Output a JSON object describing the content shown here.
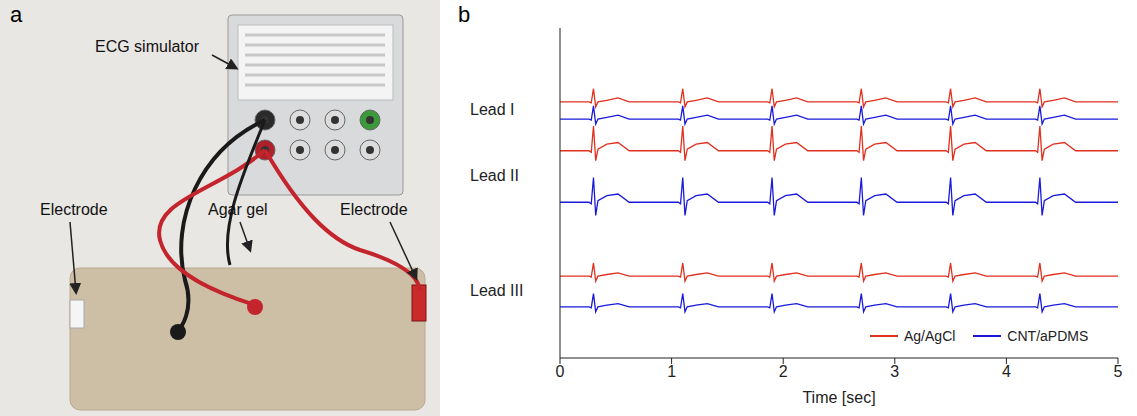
{
  "panel_a": {
    "letter": "a",
    "labels": {
      "simulator": "ECG simulator",
      "gel": "Agar gel",
      "electrode_left": "Electrode",
      "electrode_right": "Electrode"
    }
  },
  "panel_b": {
    "letter": "b"
  },
  "chart_data": {
    "type": "line",
    "xlabel": "Time [sec]",
    "xlim": [
      0,
      5
    ],
    "xticks": [
      0,
      1,
      2,
      3,
      4,
      5
    ],
    "ylim": [
      0,
      10
    ],
    "tick_labels": "x",
    "legend": "lower right",
    "x": [
      0,
      0.26,
      0.28,
      0.3,
      0.32,
      0.34,
      0.42,
      0.52,
      0.62,
      1.06,
      1.08,
      1.1,
      1.12,
      1.14,
      1.22,
      1.32,
      1.42,
      1.86,
      1.88,
      1.9,
      1.92,
      1.94,
      2.02,
      2.12,
      2.22,
      2.66,
      2.68,
      2.7,
      2.72,
      2.74,
      2.82,
      2.92,
      3.02,
      3.46,
      3.48,
      3.5,
      3.52,
      3.54,
      3.62,
      3.72,
      3.82,
      4.26,
      4.28,
      4.3,
      4.32,
      4.34,
      4.42,
      4.52,
      4.62,
      5
    ],
    "series": [
      {
        "name": "Ag/AgCl",
        "lead": "Lead I",
        "color": "#e0301e",
        "values": [
          7.76,
          7.76,
          7.73,
          8.16,
          7.61,
          7.76,
          7.81,
          7.88,
          7.76,
          7.76,
          7.73,
          8.16,
          7.61,
          7.76,
          7.81,
          7.88,
          7.76,
          7.76,
          7.73,
          8.16,
          7.61,
          7.76,
          7.81,
          7.88,
          7.76,
          7.76,
          7.73,
          8.16,
          7.61,
          7.76,
          7.81,
          7.88,
          7.76,
          7.76,
          7.73,
          8.16,
          7.61,
          7.76,
          7.81,
          7.88,
          7.76,
          7.76,
          7.73,
          8.16,
          7.61,
          7.76,
          7.81,
          7.88,
          7.76,
          7.76
        ]
      },
      {
        "name": "CNT/aPDMS",
        "lead": "Lead I",
        "color": "#1a1adb",
        "values": [
          7.24,
          7.24,
          7.21,
          7.64,
          7.09,
          7.24,
          7.29,
          7.36,
          7.24,
          7.24,
          7.21,
          7.64,
          7.09,
          7.24,
          7.29,
          7.36,
          7.24,
          7.24,
          7.21,
          7.64,
          7.09,
          7.24,
          7.29,
          7.36,
          7.24,
          7.24,
          7.21,
          7.64,
          7.09,
          7.24,
          7.29,
          7.36,
          7.24,
          7.24,
          7.21,
          7.64,
          7.09,
          7.24,
          7.29,
          7.36,
          7.24,
          7.24,
          7.21,
          7.64,
          7.09,
          7.24,
          7.29,
          7.36,
          7.24,
          7.24
        ]
      },
      {
        "name": "Ag/AgCl",
        "lead": "Lead II",
        "color": "#e0301e",
        "values": [
          6.28,
          6.28,
          6.23,
          7.03,
          5.98,
          6.33,
          6.48,
          6.53,
          6.28,
          6.28,
          6.23,
          7.03,
          5.98,
          6.33,
          6.48,
          6.53,
          6.28,
          6.28,
          6.23,
          7.03,
          5.98,
          6.33,
          6.48,
          6.53,
          6.28,
          6.28,
          6.23,
          7.03,
          5.98,
          6.33,
          6.48,
          6.53,
          6.28,
          6.28,
          6.23,
          7.03,
          5.98,
          6.33,
          6.48,
          6.53,
          6.28,
          6.28,
          6.23,
          7.03,
          5.98,
          6.33,
          6.48,
          6.53,
          6.28,
          6.28
        ]
      },
      {
        "name": "CNT/aPDMS",
        "lead": "Lead II",
        "color": "#1a1adb",
        "values": [
          4.72,
          4.72,
          4.67,
          5.47,
          4.32,
          4.77,
          4.92,
          4.97,
          4.72,
          4.72,
          4.67,
          5.47,
          4.32,
          4.77,
          4.92,
          4.97,
          4.72,
          4.72,
          4.67,
          5.47,
          4.32,
          4.77,
          4.92,
          4.97,
          4.72,
          4.72,
          4.67,
          5.47,
          4.32,
          4.77,
          4.92,
          4.97,
          4.72,
          4.72,
          4.67,
          5.47,
          4.32,
          4.77,
          4.92,
          4.97,
          4.72,
          4.72,
          4.67,
          5.47,
          4.32,
          4.77,
          4.92,
          4.97,
          4.72,
          4.72
        ]
      },
      {
        "name": "Ag/AgCl",
        "lead": "Lead III",
        "color": "#e0301e",
        "values": [
          2.48,
          2.48,
          2.45,
          2.88,
          2.33,
          2.48,
          2.53,
          2.58,
          2.48,
          2.48,
          2.45,
          2.88,
          2.33,
          2.48,
          2.53,
          2.58,
          2.48,
          2.48,
          2.45,
          2.88,
          2.33,
          2.48,
          2.53,
          2.58,
          2.48,
          2.48,
          2.45,
          2.88,
          2.33,
          2.48,
          2.53,
          2.58,
          2.48,
          2.48,
          2.45,
          2.88,
          2.33,
          2.48,
          2.53,
          2.58,
          2.48,
          2.48,
          2.45,
          2.88,
          2.33,
          2.48,
          2.53,
          2.58,
          2.48,
          2.48
        ]
      },
      {
        "name": "CNT/aPDMS",
        "lead": "Lead III",
        "color": "#1a1adb",
        "values": [
          1.55,
          1.55,
          1.52,
          1.95,
          1.4,
          1.55,
          1.6,
          1.65,
          1.55,
          1.55,
          1.52,
          1.95,
          1.4,
          1.55,
          1.6,
          1.65,
          1.55,
          1.55,
          1.52,
          1.95,
          1.4,
          1.55,
          1.6,
          1.65,
          1.55,
          1.55,
          1.52,
          1.95,
          1.4,
          1.55,
          1.6,
          1.65,
          1.55,
          1.55,
          1.52,
          1.95,
          1.4,
          1.55,
          1.6,
          1.65,
          1.55,
          1.55,
          1.52,
          1.95,
          1.4,
          1.55,
          1.6,
          1.65,
          1.55,
          1.55
        ]
      }
    ]
  }
}
